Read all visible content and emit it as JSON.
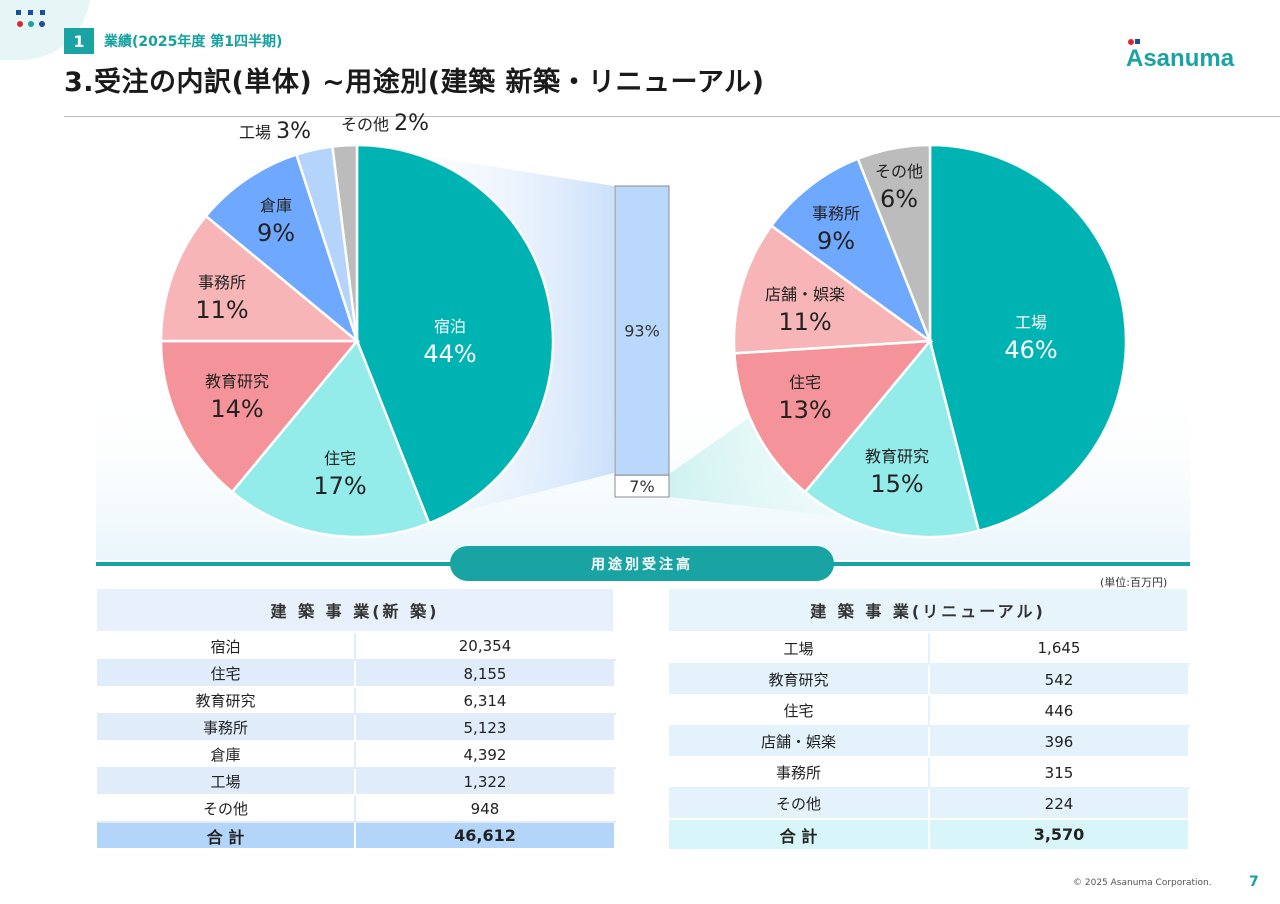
{
  "header": {
    "section_number": "1",
    "section_label": "業績(2025年度 第1四半期)",
    "title": "3.受注の内訳(単体) ~用途別(建築 新築・リニューアル)",
    "logo_text": "Asanuma"
  },
  "band_label": "用途別受注高",
  "unit_label": "(単位:百万円)",
  "colors": {
    "accent": "#1aa3a3",
    "宿泊": "#00b3b3",
    "住宅_new": "#93ebea",
    "教育研究_new": "#f5939a",
    "事務所_new": "#f8b5b8",
    "倉庫": "#6ea8ff",
    "工場_new": "#b5d4fb",
    "その他": "#bcbcbc",
    "table_left_alt": "#e1ecfb",
    "table_left_total": "#b4d5fa",
    "table_right_alt": "#e3f2fb",
    "table_right_total": "#d8f6f9"
  },
  "chart_data": [
    {
      "type": "pie",
      "name": "建築事業(新築)",
      "slices": [
        {
          "label": "宿泊",
          "value": 44,
          "display": "44%"
        },
        {
          "label": "住宅",
          "value": 17,
          "display": "17%"
        },
        {
          "label": "教育研究",
          "value": 14,
          "display": "14%"
        },
        {
          "label": "事務所",
          "value": 11,
          "display": "11%"
        },
        {
          "label": "倉庫",
          "value": 9,
          "display": "9%"
        },
        {
          "label": "工場",
          "value": 3,
          "display": "3%"
        },
        {
          "label": "その他",
          "value": 2,
          "display": "2%"
        }
      ]
    },
    {
      "type": "bar",
      "name": "stacked share",
      "stacked": true,
      "segments": [
        {
          "value": 93,
          "display": "93%"
        },
        {
          "value": 7,
          "display": "7%"
        }
      ]
    },
    {
      "type": "pie",
      "name": "建築事業(リニューアル)",
      "slices": [
        {
          "label": "工場",
          "value": 46,
          "display": "46%"
        },
        {
          "label": "教育研究",
          "value": 15,
          "display": "15%"
        },
        {
          "label": "住宅",
          "value": 13,
          "display": "13%"
        },
        {
          "label": "店舗・娯楽",
          "value": 11,
          "display": "11%"
        },
        {
          "label": "事務所",
          "value": 9,
          "display": "9%"
        },
        {
          "label": "その他",
          "value": 6,
          "display": "6%"
        }
      ]
    }
  ],
  "tables": {
    "new": {
      "title": "建 築 事 業(新 築)",
      "rows": [
        {
          "label": "宿泊",
          "value": "20,354"
        },
        {
          "label": "住宅",
          "value": "8,155"
        },
        {
          "label": "教育研究",
          "value": "6,314"
        },
        {
          "label": "事務所",
          "value": "5,123"
        },
        {
          "label": "倉庫",
          "value": "4,392"
        },
        {
          "label": "工場",
          "value": "1,322"
        },
        {
          "label": "その他",
          "value": "948"
        }
      ],
      "total": {
        "label": "合 計",
        "value": "46,612"
      }
    },
    "renewal": {
      "title": "建 築 事 業(リニューアル)",
      "rows": [
        {
          "label": "工場",
          "value": "1,645"
        },
        {
          "label": "教育研究",
          "value": "542"
        },
        {
          "label": "住宅",
          "value": "446"
        },
        {
          "label": "店舗・娯楽",
          "value": "396"
        },
        {
          "label": "事務所",
          "value": "315"
        },
        {
          "label": "その他",
          "value": "224"
        }
      ],
      "total": {
        "label": "合 計",
        "value": "3,570"
      }
    }
  },
  "footer": {
    "copyright": "© 2025 Asanuma Corporation.",
    "page": "7"
  }
}
